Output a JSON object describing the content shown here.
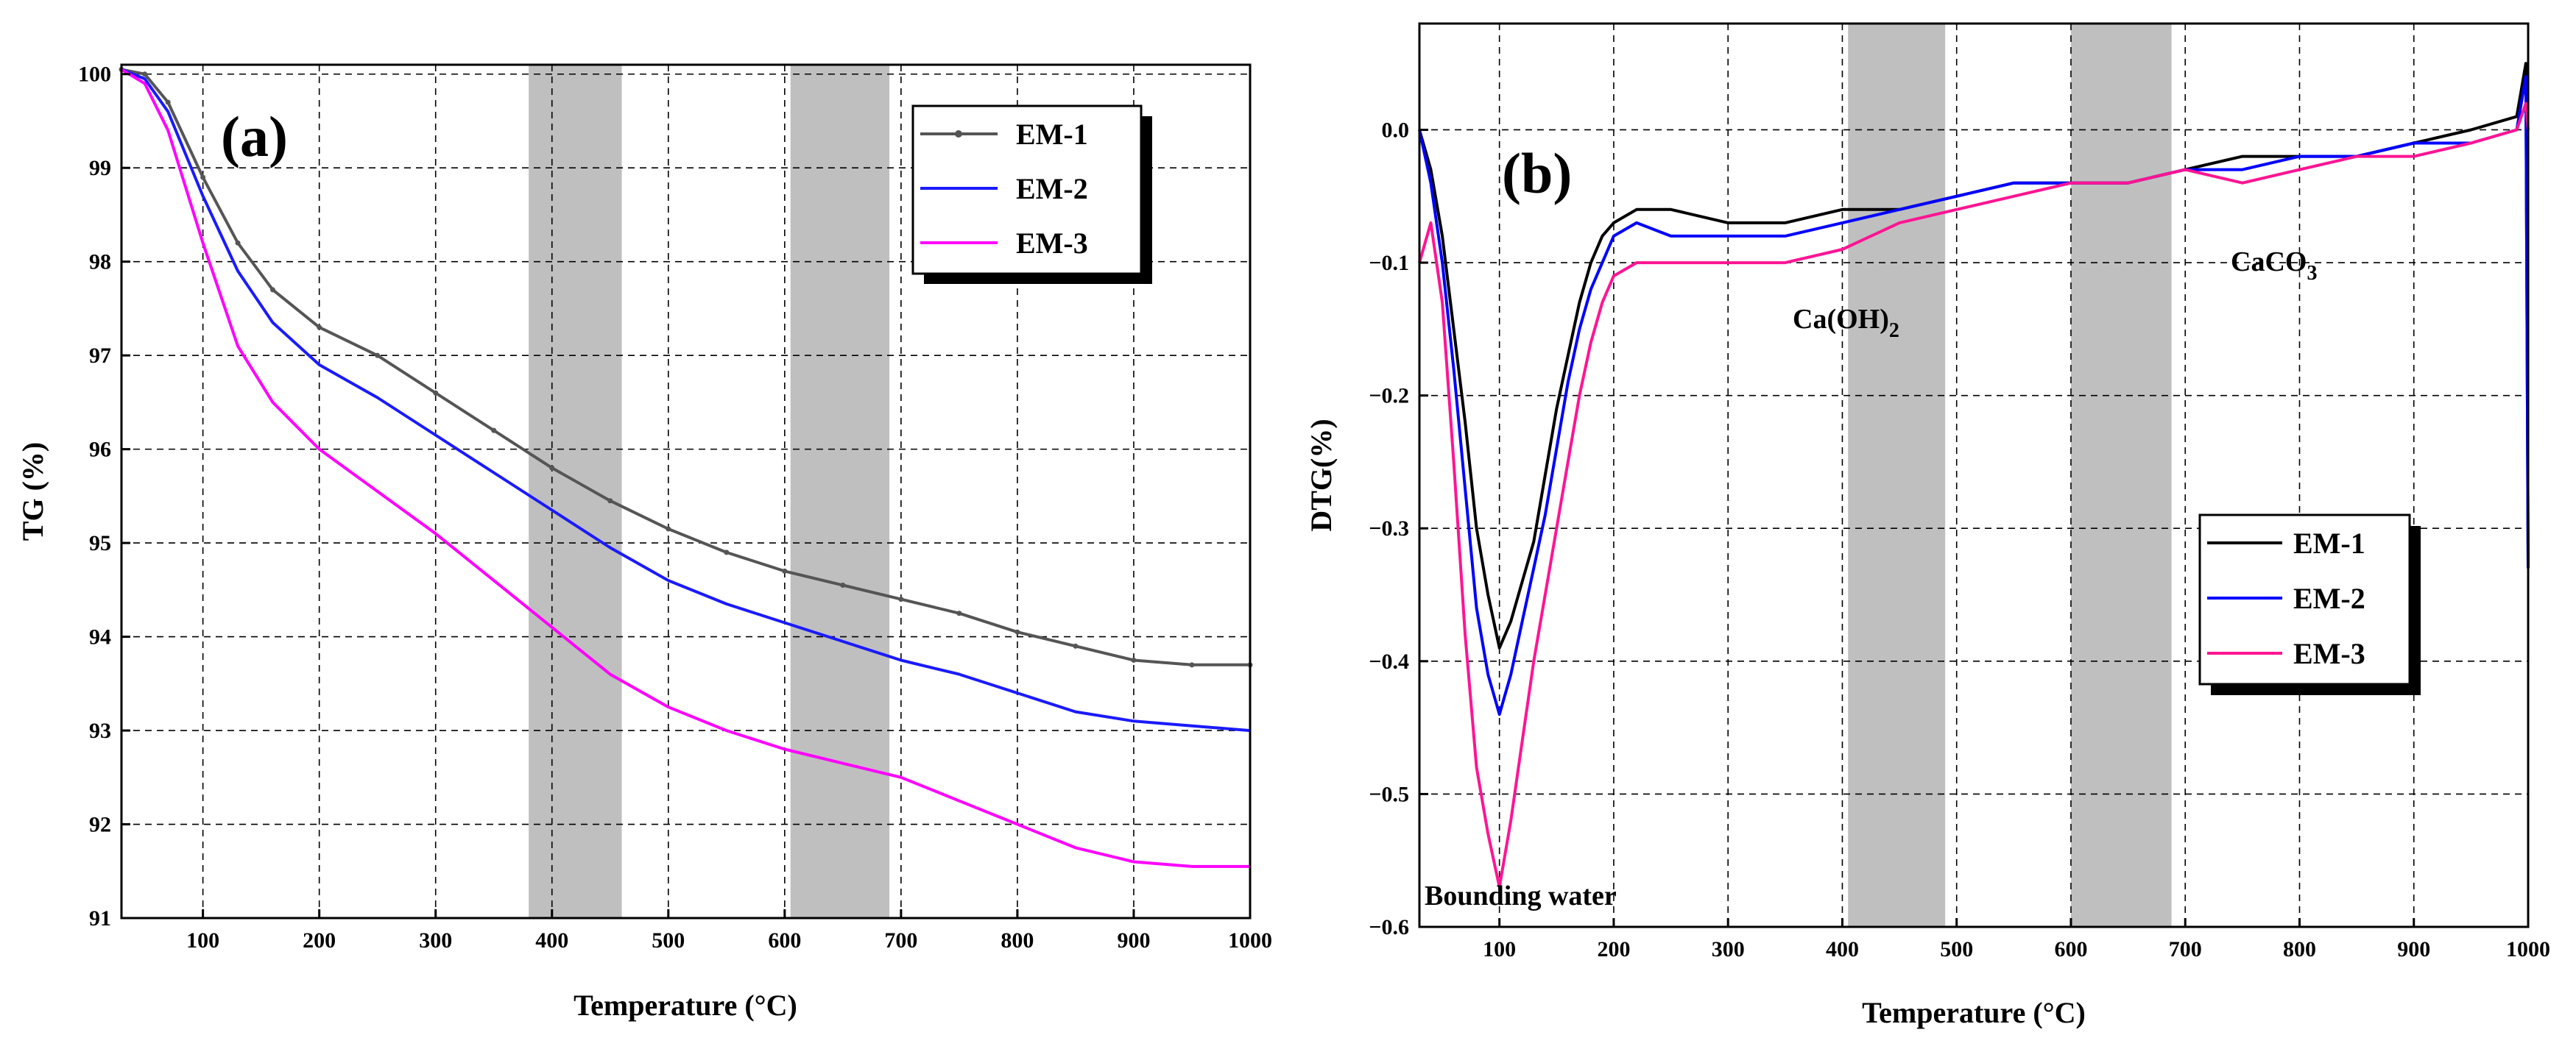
{
  "chart_data": [
    {
      "type": "line",
      "panel_label": "(a)",
      "xlabel": "Temperature (°C)",
      "ylabel": "TG (%)",
      "xlim": [
        30,
        1000
      ],
      "ylim": [
        91,
        100.1
      ],
      "xticks": [
        100,
        200,
        300,
        400,
        500,
        600,
        700,
        800,
        900,
        1000
      ],
      "yticks": [
        91,
        92,
        93,
        94,
        95,
        96,
        97,
        98,
        99,
        100
      ],
      "grid": "dashed",
      "shaded_ranges": [
        [
          380,
          460
        ],
        [
          605,
          690
        ]
      ],
      "legend_position": "top-right",
      "series": [
        {
          "name": "EM-1",
          "color": "#555555",
          "marker": "dot",
          "x": [
            30,
            50,
            70,
            100,
            130,
            160,
            200,
            250,
            300,
            350,
            400,
            450,
            500,
            550,
            600,
            650,
            700,
            750,
            800,
            850,
            900,
            950,
            1000
          ],
          "y": [
            100.05,
            100.0,
            99.7,
            98.9,
            98.2,
            97.7,
            97.3,
            97.0,
            96.6,
            96.2,
            95.8,
            95.45,
            95.15,
            94.9,
            94.7,
            94.55,
            94.4,
            94.25,
            94.05,
            93.9,
            93.75,
            93.7,
            93.7
          ]
        },
        {
          "name": "EM-2",
          "color": "#1a1aff",
          "x": [
            30,
            50,
            70,
            100,
            130,
            160,
            200,
            250,
            300,
            350,
            400,
            450,
            500,
            550,
            600,
            650,
            700,
            750,
            800,
            850,
            900,
            950,
            1000
          ],
          "y": [
            100.05,
            99.95,
            99.6,
            98.7,
            97.9,
            97.35,
            96.9,
            96.55,
            96.15,
            95.75,
            95.35,
            94.95,
            94.6,
            94.35,
            94.15,
            93.95,
            93.75,
            93.6,
            93.4,
            93.2,
            93.1,
            93.05,
            93.0
          ]
        },
        {
          "name": "EM-3",
          "color": "#ff00ff",
          "x": [
            30,
            50,
            70,
            100,
            130,
            160,
            200,
            250,
            300,
            350,
            400,
            450,
            500,
            550,
            600,
            650,
            700,
            730,
            750,
            800,
            850,
            900,
            950,
            1000
          ],
          "y": [
            100.05,
            99.9,
            99.4,
            98.2,
            97.1,
            96.5,
            96.0,
            95.55,
            95.1,
            94.6,
            94.1,
            93.6,
            93.25,
            93.0,
            92.8,
            92.65,
            92.5,
            92.35,
            92.25,
            92.0,
            91.75,
            91.6,
            91.55,
            91.55
          ]
        }
      ]
    },
    {
      "type": "line",
      "panel_label": "(b)",
      "xlabel": "Temperature (°C)",
      "ylabel": "DTG(%)",
      "xlim": [
        30,
        1000
      ],
      "ylim": [
        -0.6,
        0.08
      ],
      "xticks": [
        100,
        200,
        300,
        400,
        500,
        600,
        700,
        800,
        900,
        1000
      ],
      "yticks": [
        0.0,
        -0.1,
        -0.2,
        -0.3,
        -0.4,
        -0.5,
        -0.6
      ],
      "grid": "dashed",
      "shaded_ranges": [
        [
          405,
          490
        ],
        [
          600,
          688
        ]
      ],
      "legend_position": "center-right",
      "annotations": [
        {
          "text": "Bounding water",
          "x": 105,
          "y": -0.585
        },
        {
          "text": "Ca(OH)",
          "sub": "2",
          "x": 435,
          "y": -0.145
        },
        {
          "text": "CaCO",
          "sub": "3",
          "x": 790,
          "y": -0.115
        }
      ],
      "series": [
        {
          "name": "EM-1",
          "color": "#000000",
          "x": [
            30,
            40,
            50,
            60,
            70,
            80,
            90,
            100,
            110,
            120,
            130,
            140,
            150,
            160,
            170,
            180,
            190,
            200,
            220,
            250,
            300,
            350,
            400,
            450,
            500,
            550,
            600,
            650,
            700,
            750,
            800,
            850,
            900,
            950,
            990,
            998,
            1000
          ],
          "y": [
            0.0,
            -0.03,
            -0.08,
            -0.15,
            -0.22,
            -0.3,
            -0.35,
            -0.39,
            -0.37,
            -0.34,
            -0.31,
            -0.26,
            -0.21,
            -0.17,
            -0.13,
            -0.1,
            -0.08,
            -0.07,
            -0.06,
            -0.06,
            -0.07,
            -0.07,
            -0.06,
            -0.06,
            -0.05,
            -0.04,
            -0.04,
            -0.04,
            -0.03,
            -0.02,
            -0.02,
            -0.02,
            -0.01,
            0.0,
            0.01,
            0.05,
            -0.33
          ]
        },
        {
          "name": "EM-2",
          "color": "#0000ff",
          "x": [
            30,
            40,
            50,
            60,
            70,
            80,
            90,
            100,
            110,
            120,
            130,
            140,
            150,
            160,
            170,
            180,
            190,
            200,
            220,
            250,
            300,
            350,
            400,
            450,
            500,
            550,
            600,
            650,
            700,
            750,
            800,
            850,
            900,
            950,
            990,
            998,
            1000
          ],
          "y": [
            0.0,
            -0.04,
            -0.1,
            -0.18,
            -0.27,
            -0.36,
            -0.41,
            -0.44,
            -0.41,
            -0.37,
            -0.33,
            -0.29,
            -0.24,
            -0.19,
            -0.15,
            -0.12,
            -0.1,
            -0.08,
            -0.07,
            -0.08,
            -0.08,
            -0.08,
            -0.07,
            -0.06,
            -0.05,
            -0.04,
            -0.04,
            -0.04,
            -0.03,
            -0.03,
            -0.02,
            -0.02,
            -0.01,
            -0.01,
            0.0,
            0.04,
            -0.33
          ]
        },
        {
          "name": "EM-3",
          "color": "#ff1493",
          "x": [
            30,
            40,
            50,
            60,
            70,
            80,
            90,
            100,
            110,
            120,
            130,
            140,
            150,
            160,
            170,
            180,
            190,
            200,
            220,
            250,
            300,
            350,
            400,
            450,
            500,
            550,
            600,
            650,
            700,
            750,
            800,
            850,
            900,
            950,
            990,
            998,
            1000
          ],
          "y": [
            -0.1,
            -0.07,
            -0.13,
            -0.25,
            -0.38,
            -0.48,
            -0.53,
            -0.57,
            -0.52,
            -0.46,
            -0.4,
            -0.35,
            -0.3,
            -0.25,
            -0.2,
            -0.16,
            -0.13,
            -0.11,
            -0.1,
            -0.1,
            -0.1,
            -0.1,
            -0.09,
            -0.07,
            -0.06,
            -0.05,
            -0.04,
            -0.04,
            -0.03,
            -0.04,
            -0.03,
            -0.02,
            -0.02,
            -0.01,
            0.0,
            0.02,
            0.0
          ]
        }
      ]
    }
  ]
}
